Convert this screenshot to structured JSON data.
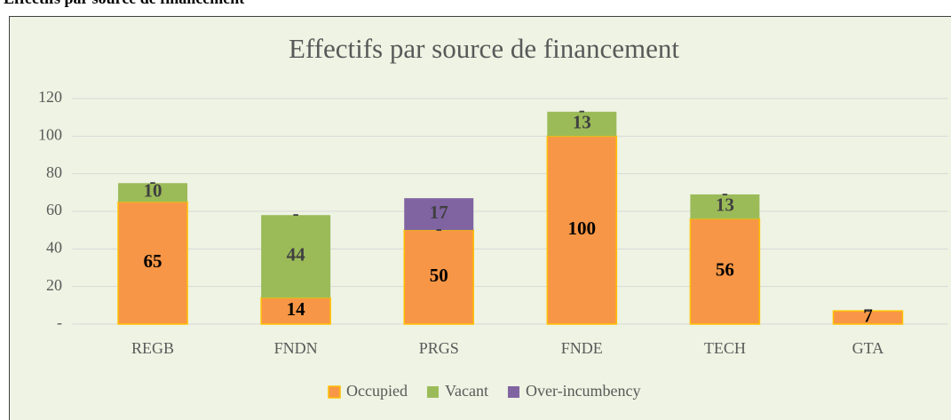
{
  "heading": "Effectifs par source de financement",
  "chart_data": {
    "type": "stacked_bar",
    "title": "Effectifs par source de financement",
    "categories": [
      "REGB",
      "FNDN",
      "PRGS",
      "FNDE",
      "TECH",
      "GTA"
    ],
    "series": [
      {
        "name": "Occupied",
        "color": "#f79646",
        "values": [
          65,
          14,
          50,
          100,
          56,
          7
        ]
      },
      {
        "name": "Vacant",
        "color": "#9bbb59",
        "values": [
          10,
          44,
          0,
          13,
          13,
          0
        ],
        "value_labels": [
          "10",
          "44",
          "-",
          "13",
          "13",
          "-"
        ]
      },
      {
        "name": "Over-incumbency",
        "color": "#8064a2",
        "values": [
          0,
          0,
          17,
          0,
          0,
          0
        ],
        "value_labels": [
          "-",
          "-",
          "17",
          "-",
          "-",
          "-"
        ]
      }
    ],
    "ylim": [
      0,
      120
    ],
    "yticks": [
      {
        "value": 0,
        "label": "-"
      },
      20,
      40,
      60,
      80,
      100,
      120
    ],
    "grid": true,
    "legend": "bottom"
  }
}
